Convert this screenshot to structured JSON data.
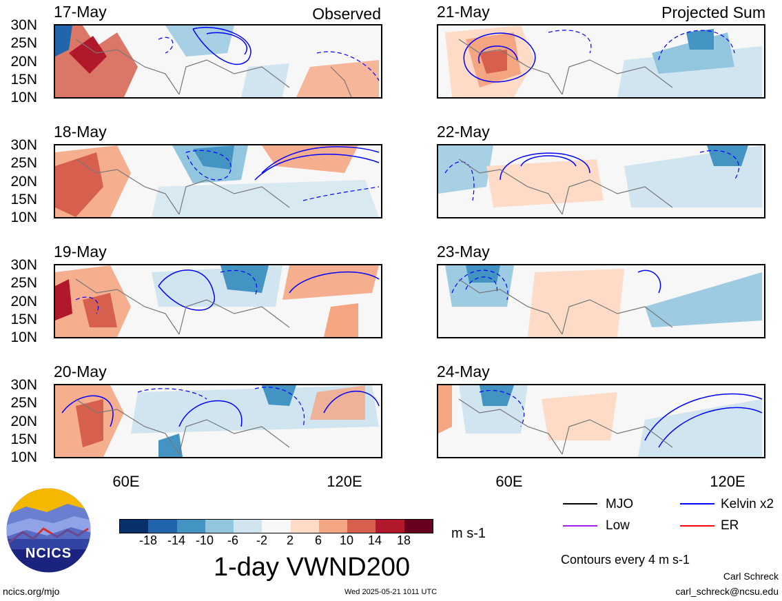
{
  "panels": [
    {
      "date": "17-May",
      "tag": "Observed"
    },
    {
      "date": "18-May",
      "tag": ""
    },
    {
      "date": "19-May",
      "tag": ""
    },
    {
      "date": "20-May",
      "tag": ""
    },
    {
      "date": "21-May",
      "tag": "Projected Sum"
    },
    {
      "date": "22-May",
      "tag": ""
    },
    {
      "date": "23-May",
      "tag": ""
    },
    {
      "date": "24-May",
      "tag": ""
    }
  ],
  "latitude_labels": [
    "30N",
    "25N",
    "20N",
    "15N",
    "10N"
  ],
  "longitude_labels": [
    "60E",
    "120E"
  ],
  "colorbar": {
    "labels": [
      "-18",
      "-14",
      "-10",
      "-6",
      "-2",
      "2",
      "6",
      "10",
      "14",
      "18"
    ],
    "colors": [
      "#08306b",
      "#2166ac",
      "#4393c3",
      "#92c5de",
      "#d1e5f0",
      "#f7f7f7",
      "#fddbc7",
      "#f4a582",
      "#d6604d",
      "#b2182b",
      "#67001f"
    ],
    "units": "m s-1"
  },
  "title": "1-day VWND200",
  "legend": {
    "items": [
      {
        "label": "MJO",
        "color": "#000000"
      },
      {
        "label": "Kelvin x2",
        "color": "#0000ff"
      },
      {
        "label": "Low",
        "color": "#a020f0"
      },
      {
        "label": "ER",
        "color": "#ff0000"
      }
    ],
    "contours": "Contours every 4 m s-1"
  },
  "footer": {
    "site": "ncics.org/mjo",
    "timestamp": "Wed 2025-05-21 1011 UTC",
    "author": "Carl Schreck",
    "email": "carl_schreck@ncsu.edu"
  },
  "logo": {
    "text": "NCICS"
  }
}
